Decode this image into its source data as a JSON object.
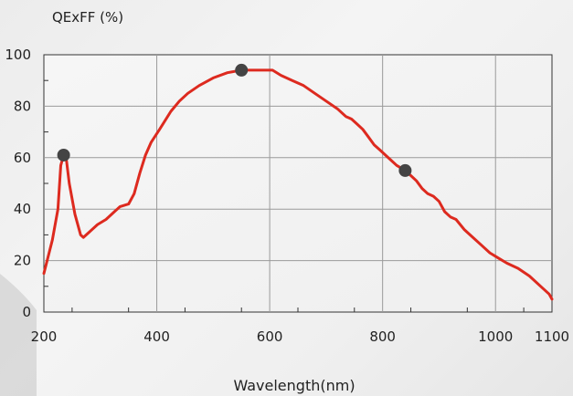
{
  "chart_data": {
    "type": "line",
    "title": "",
    "ylabel": "QExFF (%)",
    "xlabel": "Wavelength(nm)",
    "xlim": [
      200,
      1100
    ],
    "ylim": [
      0,
      100
    ],
    "x_ticks": [
      "200",
      "400",
      "600",
      "800",
      "1000",
      "1100"
    ],
    "y_ticks": [
      "0",
      "20",
      "40",
      "60",
      "80",
      "100"
    ],
    "grid": true,
    "series": [
      {
        "color": "#dd2a1f",
        "points": [
          [
            200,
            15
          ],
          [
            215,
            28
          ],
          [
            225,
            40
          ],
          [
            230,
            57
          ],
          [
            235,
            61
          ],
          [
            240,
            59
          ],
          [
            245,
            50
          ],
          [
            255,
            38
          ],
          [
            265,
            30
          ],
          [
            270,
            29
          ],
          [
            280,
            31
          ],
          [
            295,
            34
          ],
          [
            310,
            36
          ],
          [
            325,
            39
          ],
          [
            335,
            41
          ],
          [
            350,
            42
          ],
          [
            360,
            46
          ],
          [
            370,
            54
          ],
          [
            380,
            61
          ],
          [
            390,
            66
          ],
          [
            405,
            71
          ],
          [
            425,
            78
          ],
          [
            440,
            82
          ],
          [
            455,
            85
          ],
          [
            475,
            88
          ],
          [
            500,
            91
          ],
          [
            525,
            93
          ],
          [
            550,
            94
          ],
          [
            570,
            94
          ],
          [
            590,
            94
          ],
          [
            605,
            94
          ],
          [
            620,
            92
          ],
          [
            640,
            90
          ],
          [
            660,
            88
          ],
          [
            680,
            85
          ],
          [
            700,
            82
          ],
          [
            720,
            79
          ],
          [
            735,
            76
          ],
          [
            745,
            75
          ],
          [
            755,
            73
          ],
          [
            765,
            71
          ],
          [
            775,
            68
          ],
          [
            785,
            65
          ],
          [
            795,
            63
          ],
          [
            805,
            61
          ],
          [
            815,
            59
          ],
          [
            825,
            57
          ],
          [
            840,
            55
          ],
          [
            850,
            53
          ],
          [
            860,
            51
          ],
          [
            870,
            48
          ],
          [
            880,
            46
          ],
          [
            890,
            45
          ],
          [
            900,
            43
          ],
          [
            910,
            39
          ],
          [
            920,
            37
          ],
          [
            930,
            36
          ],
          [
            945,
            32
          ],
          [
            960,
            29
          ],
          [
            975,
            26
          ],
          [
            990,
            23
          ],
          [
            1005,
            21
          ],
          [
            1020,
            19
          ],
          [
            1040,
            17
          ],
          [
            1060,
            14
          ],
          [
            1080,
            10
          ],
          [
            1095,
            7
          ],
          [
            1100,
            5
          ]
        ]
      }
    ],
    "markers": [
      {
        "x": 235,
        "y": 61,
        "color": "#444444"
      },
      {
        "x": 550,
        "y": 94,
        "color": "#444444"
      },
      {
        "x": 840,
        "y": 55,
        "color": "#444444"
      }
    ]
  }
}
